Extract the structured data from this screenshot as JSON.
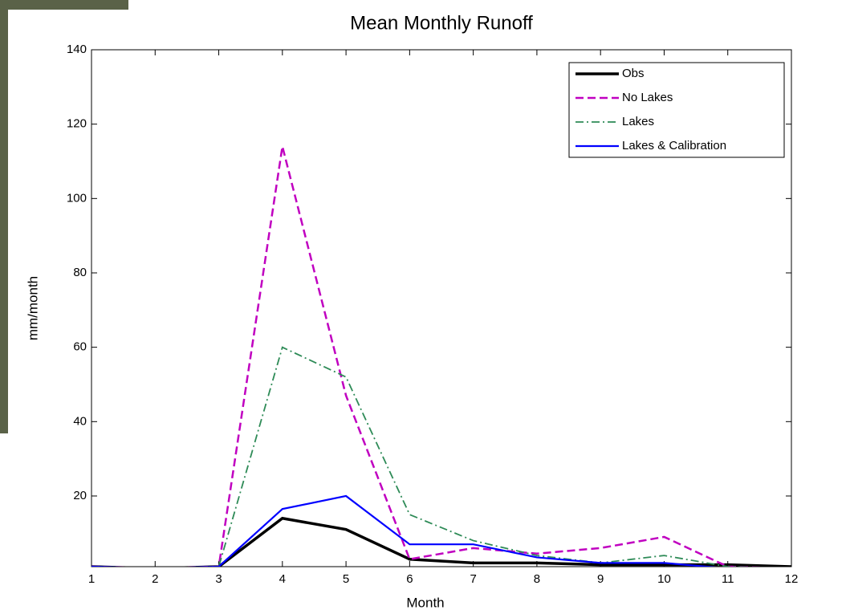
{
  "chart_data": {
    "type": "line",
    "title": "Mean Monthly Runoff",
    "x_label": "Month",
    "y_label": "mm/month",
    "x": [
      1,
      2,
      3,
      4,
      5,
      6,
      7,
      8,
      9,
      10,
      11,
      12
    ],
    "xlim": [
      1,
      12
    ],
    "xticks": [
      1,
      2,
      3,
      4,
      5,
      6,
      7,
      8,
      9,
      10,
      11,
      12
    ],
    "ylim": [
      1,
      140
    ],
    "yticks": [
      20,
      40,
      60,
      80,
      100,
      120,
      140
    ],
    "legend": "upper right",
    "series": [
      {
        "name": "Obs",
        "color": "#000000",
        "dash": "solid",
        "values": [
          1,
          0.5,
          1,
          14,
          11,
          3,
          2,
          2,
          1.5,
          1.5,
          1.5,
          1
        ]
      },
      {
        "name": "No Lakes",
        "color": "#c000c0",
        "dash": "dashed",
        "values": [
          1,
          0.5,
          1,
          114,
          47,
          3,
          6,
          4.5,
          6,
          9,
          1,
          0.5
        ]
      },
      {
        "name": "Lakes",
        "color": "#2e8b57",
        "dash": "dashdot",
        "values": [
          1,
          0.5,
          1,
          60,
          52,
          15,
          8,
          4,
          2,
          4,
          1,
          0.5
        ]
      },
      {
        "name": "Lakes & Calibration",
        "color": "#0000ff",
        "dash": "solid",
        "values": [
          1,
          0.5,
          1,
          16.5,
          20,
          7,
          7,
          3.5,
          2,
          2,
          0.5,
          0.5
        ]
      }
    ]
  }
}
